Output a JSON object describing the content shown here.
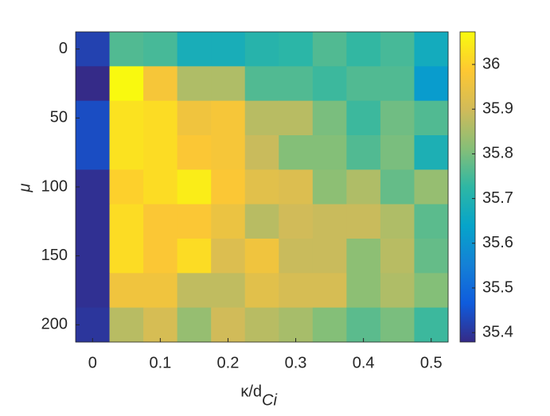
{
  "chart_data": {
    "type": "heatmap",
    "xlabel": "κ/d",
    "xlabel_subscript": "Ci",
    "ylabel": "μ",
    "x": [
      0,
      0.05,
      0.1,
      0.15,
      0.2,
      0.25,
      0.3,
      0.35,
      0.4,
      0.45,
      0.5
    ],
    "y": [
      0,
      25,
      50,
      75,
      100,
      125,
      150,
      175,
      200
    ],
    "z": [
      [
        35.42,
        35.76,
        35.75,
        35.68,
        35.68,
        35.71,
        35.72,
        35.76,
        35.73,
        35.75,
        35.67
      ],
      [
        35.38,
        36.07,
        35.97,
        35.86,
        35.86,
        35.76,
        35.76,
        35.74,
        35.76,
        35.76,
        35.62
      ],
      [
        35.44,
        36.03,
        36.02,
        35.96,
        35.97,
        35.87,
        35.87,
        35.8,
        35.74,
        35.79,
        35.76
      ],
      [
        35.44,
        36.03,
        36.02,
        35.98,
        35.97,
        35.89,
        35.81,
        35.81,
        35.76,
        35.8,
        35.69
      ],
      [
        35.39,
        36.0,
        36.02,
        36.05,
        35.98,
        35.93,
        35.92,
        35.82,
        35.86,
        35.78,
        35.83
      ],
      [
        35.39,
        36.02,
        35.98,
        35.98,
        35.95,
        35.87,
        35.9,
        35.89,
        35.89,
        35.86,
        35.77
      ],
      [
        35.39,
        36.02,
        35.98,
        36.02,
        35.92,
        35.96,
        35.89,
        35.89,
        35.82,
        35.87,
        35.78
      ],
      [
        35.39,
        35.96,
        35.96,
        35.88,
        35.88,
        35.93,
        35.91,
        35.91,
        35.82,
        35.86,
        35.81
      ],
      [
        35.4,
        35.87,
        35.91,
        35.83,
        35.9,
        35.87,
        35.85,
        35.81,
        35.77,
        35.8,
        35.74
      ]
    ],
    "xlim": [
      -0.025,
      0.525
    ],
    "xticks": [
      0,
      0.1,
      0.2,
      0.3,
      0.4,
      0.5
    ],
    "ylim": [
      -12.5,
      212.5
    ],
    "yticks": [
      0,
      50,
      100,
      150,
      200
    ],
    "y_reversed": true,
    "clim": [
      35.379,
      36.073
    ],
    "cticks": [
      35.4,
      35.5,
      35.6,
      35.7,
      35.8,
      35.9,
      36
    ],
    "colormap": [
      "#352a87",
      "#0f5cdd",
      "#1481d6",
      "#06a4ca",
      "#2eb7a4",
      "#87bf77",
      "#d1bb59",
      "#fec832",
      "#f9fb0e"
    ]
  }
}
